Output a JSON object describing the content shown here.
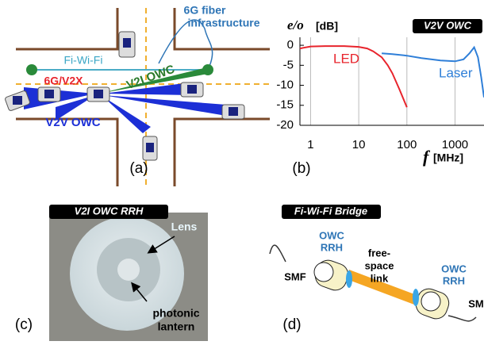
{
  "panel_a": {
    "fiber": [
      "6G fiber",
      "infrastructure"
    ],
    "fiwifi": "Fi-Wi-Fi",
    "v2x": "6G/V2X",
    "v2i": "V2I OWC",
    "v2v": "V2V OWC",
    "label": "(a)"
  },
  "chart_data": {
    "type": "line",
    "badge": "V2V OWC",
    "ylabel": {
      "var": "e/o",
      "unit": "[dB]"
    },
    "xlabel": {
      "var": "f",
      "unit": "[MHz]"
    },
    "xscale": "log",
    "xlim": [
      0.6,
      4000
    ],
    "ylim": [
      -20,
      2
    ],
    "xticks": [
      1,
      10,
      100,
      1000
    ],
    "yticks": [
      0,
      -5,
      -10,
      -15,
      -20
    ],
    "grid": true,
    "series": [
      {
        "name": "LED",
        "color": "#e8242c",
        "x": [
          0.6,
          1,
          2,
          5,
          10,
          15,
          20,
          30,
          40,
          50,
          70,
          100
        ],
        "values": [
          -0.8,
          -0.3,
          -0.2,
          -0.2,
          -0.4,
          -0.8,
          -1.5,
          -3,
          -5,
          -7,
          -11,
          -15.5
        ]
      },
      {
        "name": "Laser",
        "color": "#2f7fd8",
        "x": [
          30,
          50,
          100,
          200,
          500,
          1000,
          1500,
          2000,
          2500,
          3000,
          3500,
          4000
        ],
        "values": [
          -2,
          -2.2,
          -2.6,
          -3.2,
          -3.8,
          -4,
          -3.5,
          -2,
          -0.5,
          -3,
          -8,
          -13
        ]
      }
    ],
    "label": "(b)"
  },
  "panel_c": {
    "badge": "V2I OWC RRH",
    "lens": "Lens",
    "lantern": [
      "photonic",
      "lantern"
    ],
    "label": "(c)"
  },
  "panel_d": {
    "badge": "Fi-Wi-Fi Bridge",
    "rrh_left": [
      "OWC",
      "RRH"
    ],
    "rrh_right": [
      "OWC",
      "RRH"
    ],
    "smf_left": "SMF",
    "smf_right": "SM",
    "link": [
      "free-",
      "space",
      "link"
    ],
    "label": "(d)"
  }
}
